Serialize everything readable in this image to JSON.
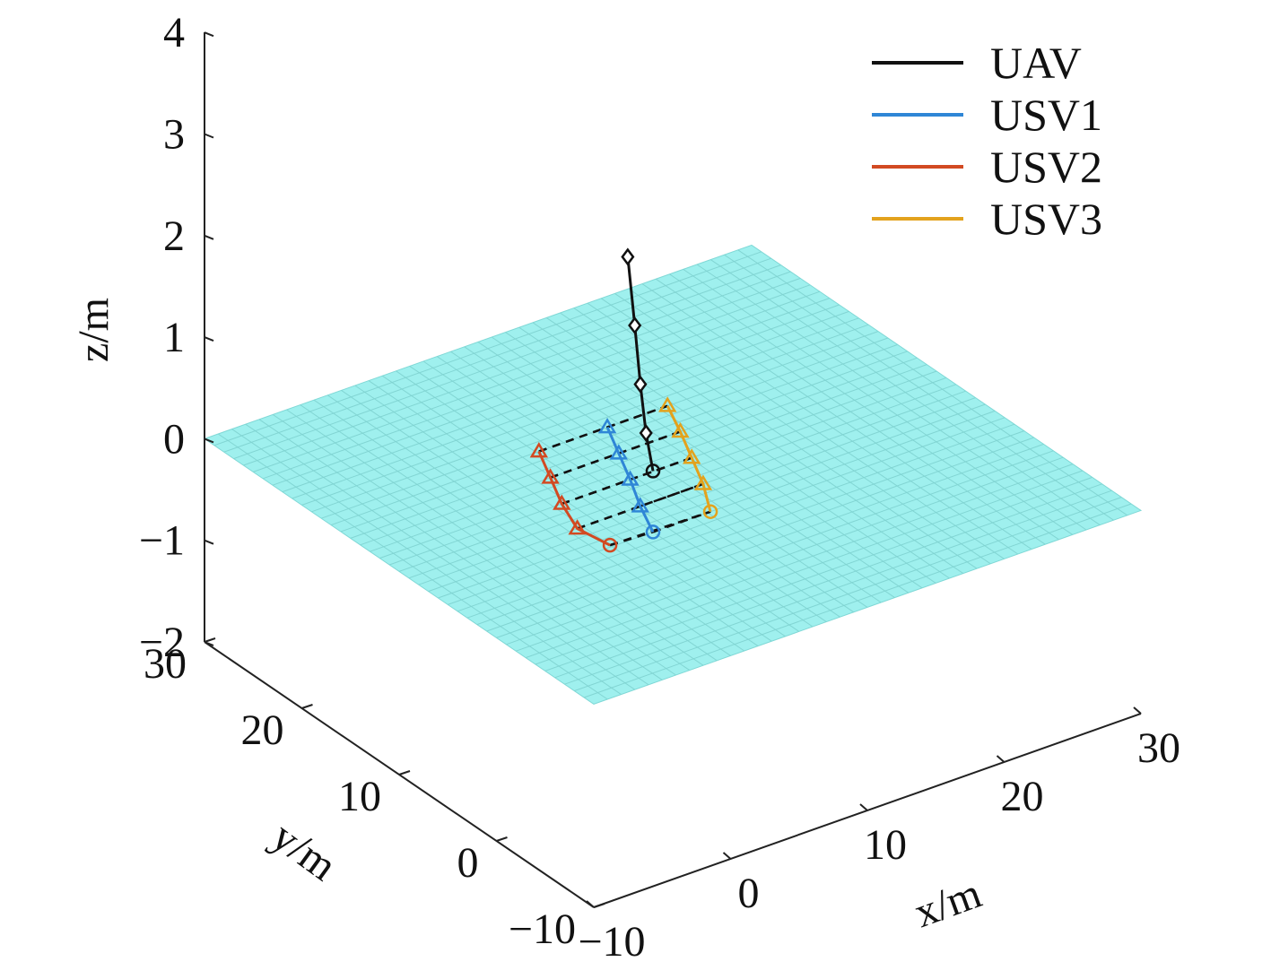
{
  "chart_data": {
    "type": "line",
    "title": "",
    "xlabel": "x/m",
    "ylabel": "y/m",
    "zlabel": "z/m",
    "xlim": [
      -10,
      30
    ],
    "ylim": [
      -10,
      30
    ],
    "zlim": [
      -2,
      4
    ],
    "xticks": [
      "−10",
      "0",
      "10",
      "20",
      "30"
    ],
    "yticks": [
      "−10",
      "0",
      "10",
      "20",
      "30"
    ],
    "zticks": [
      "−2",
      "−1",
      "0",
      "1",
      "2",
      "3",
      "4"
    ],
    "legend_position": "top-right",
    "grid": false,
    "plane": {
      "z": 0,
      "x_range": [
        -10,
        30
      ],
      "y_range": [
        -10,
        30
      ],
      "color": "#9ff0ee"
    },
    "series": [
      {
        "name": "UAV",
        "color": "#111111",
        "marker": "diamond",
        "start_marker": "circle",
        "points": [
          [
            5,
            5,
            0.6
          ],
          [
            5.2,
            6,
            0.9
          ],
          [
            5.5,
            7,
            1.3
          ],
          [
            5.8,
            8,
            1.8
          ],
          [
            6,
            9,
            2.4
          ]
        ]
      },
      {
        "name": "USV1",
        "color": "#2f86d6",
        "marker": "triangle",
        "start_marker": "circle",
        "points": [
          [
            5,
            5,
            0
          ],
          [
            6.2,
            8,
            0
          ],
          [
            7.6,
            11,
            0
          ],
          [
            8.9,
            14,
            0
          ],
          [
            10.2,
            17,
            0
          ]
        ]
      },
      {
        "name": "USV2",
        "color": "#d24a22",
        "marker": "triangle",
        "start_marker": "circle",
        "points": [
          [
            2,
            5.2,
            0
          ],
          [
            1.6,
            8,
            0
          ],
          [
            2.6,
            11,
            0
          ],
          [
            3.9,
            14,
            0
          ],
          [
            5.2,
            17,
            0
          ]
        ]
      },
      {
        "name": "USV3",
        "color": "#e3a21d",
        "marker": "triangle",
        "start_marker": "circle",
        "points": [
          [
            9.2,
            5,
            0
          ],
          [
            10.8,
            8,
            0
          ],
          [
            12.1,
            11,
            0
          ],
          [
            13.4,
            14,
            0
          ],
          [
            14.6,
            17,
            0
          ]
        ]
      }
    ],
    "formation_links": {
      "style": "dashed",
      "color": "#111111"
    }
  }
}
